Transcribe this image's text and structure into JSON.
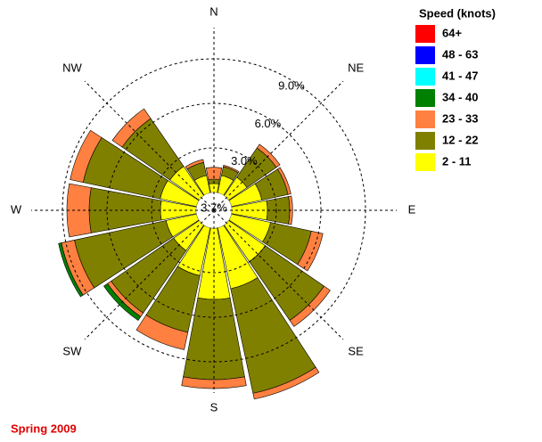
{
  "chart_data": {
    "type": "windrose",
    "title": "Spring 2009",
    "legend_title": "Speed (knots)",
    "categories": [
      "N",
      null,
      "NE",
      null,
      "E",
      null,
      "SE",
      null,
      "S",
      null,
      "SW",
      null,
      "W",
      null,
      "NW",
      null
    ],
    "calm": {
      "value": 3.7,
      "label": "3.7%"
    },
    "rlim": [
      0,
      9
    ],
    "rticks": [
      {
        "value": 3,
        "label": "3.0%"
      },
      {
        "value": 6,
        "label": "6.0%"
      },
      {
        "value": 9,
        "label": "9.0%"
      }
    ],
    "grid": true,
    "legend": "upper right",
    "series": [
      {
        "name": "64+",
        "color": "#ff0000",
        "values": [
          0,
          0,
          0,
          0,
          0,
          0,
          0,
          0,
          0,
          0,
          0,
          0,
          0,
          0,
          0,
          0
        ]
      },
      {
        "name": "48 - 63",
        "color": "#0000ff",
        "values": [
          0,
          0,
          0,
          0,
          0,
          0,
          0,
          0,
          0,
          0,
          0,
          0,
          0,
          0,
          0,
          0
        ]
      },
      {
        "name": "41 - 47",
        "color": "#00ffff",
        "values": [
          0,
          0,
          0,
          0,
          0,
          0,
          0,
          0,
          0,
          0,
          0,
          0,
          0,
          0,
          0,
          0
        ]
      },
      {
        "name": "34 - 40",
        "color": "#008000",
        "values": [
          0,
          0,
          0,
          0,
          0,
          0,
          0,
          0,
          0,
          0,
          0.3,
          0.2,
          0,
          0,
          0,
          0
        ]
      },
      {
        "name": "23 - 33",
        "color": "#ff8040",
        "values": [
          0.8,
          0.1,
          0.3,
          0.2,
          0.2,
          0.8,
          0.5,
          0.4,
          0.6,
          1.2,
          0.3,
          0.9,
          1.5,
          0.9,
          0.8,
          0.2
        ]
      },
      {
        "name": "12 - 22",
        "color": "#808000",
        "values": [
          0.3,
          0.6,
          2.4,
          1.8,
          1.5,
          2.8,
          4.8,
          7.2,
          5.4,
          3.9,
          5.1,
          6.3,
          4.8,
          5.3,
          3.9,
          0.9
        ]
      },
      {
        "name": "2 - 11",
        "color": "#ffff00",
        "values": [
          0.6,
          1.2,
          1.5,
          2.1,
          2.4,
          2.7,
          3.0,
          4.2,
          4.8,
          3.3,
          2.1,
          2.1,
          2.4,
          2.5,
          2.4,
          1.2
        ]
      }
    ]
  }
}
